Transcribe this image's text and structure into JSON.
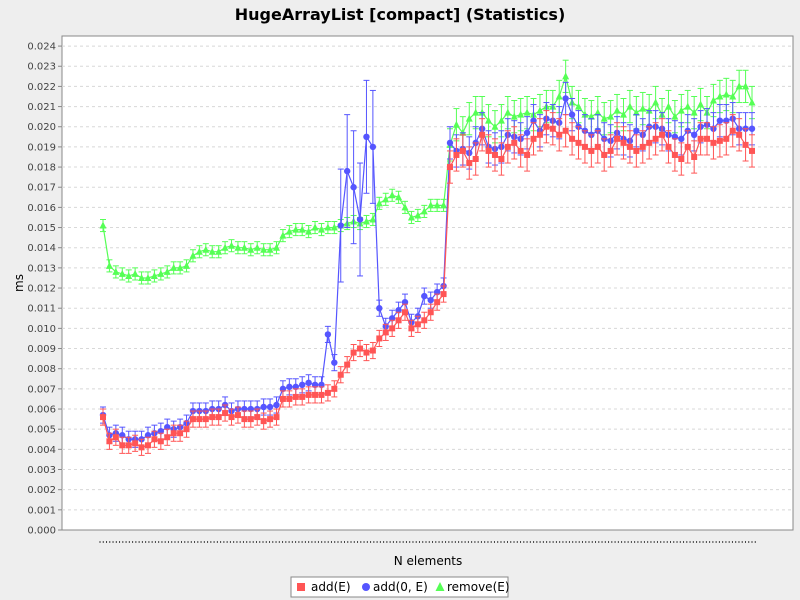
{
  "chart_data": {
    "type": "line",
    "title": "HugeArrayList [compact] (Statistics)",
    "xlabel": "N elements",
    "ylabel": "ms",
    "ylim": [
      0.0,
      0.0245
    ],
    "yticks": [
      "0.000",
      "0.001",
      "0.002",
      "0.003",
      "0.004",
      "0.005",
      "0.006",
      "0.007",
      "0.008",
      "0.009",
      "0.010",
      "0.011",
      "0.012",
      "0.013",
      "0.014",
      "0.015",
      "0.016",
      "0.017",
      "0.018",
      "0.019",
      "0.020",
      "0.021",
      "0.022",
      "0.023",
      "0.024"
    ],
    "grid": true,
    "legend_position": "bottom",
    "series": [
      {
        "name": "add(E)",
        "color": "#ff5555",
        "marker": "square",
        "values": [
          0.0056,
          0.0044,
          0.0046,
          0.0042,
          0.0042,
          0.0043,
          0.0041,
          0.0042,
          0.0045,
          0.0044,
          0.0046,
          0.0048,
          0.0048,
          0.005,
          0.0055,
          0.0055,
          0.0055,
          0.0056,
          0.0056,
          0.0058,
          0.0056,
          0.0057,
          0.0055,
          0.0055,
          0.0056,
          0.0054,
          0.0055,
          0.0056,
          0.0065,
          0.0065,
          0.0066,
          0.0066,
          0.0067,
          0.0067,
          0.0067,
          0.0068,
          0.007,
          0.0077,
          0.0082,
          0.0088,
          0.009,
          0.0088,
          0.0089,
          0.0095,
          0.0098,
          0.01,
          0.0104,
          0.0108,
          0.01,
          0.0102,
          0.0104,
          0.0108,
          0.0113,
          0.0117,
          0.018,
          0.0186,
          0.0188,
          0.0182,
          0.0184,
          0.0196,
          0.0188,
          0.0186,
          0.0184,
          0.019,
          0.0192,
          0.0188,
          0.0186,
          0.0194,
          0.0196,
          0.02,
          0.0199,
          0.0196,
          0.0198,
          0.0194,
          0.0192,
          0.019,
          0.0188,
          0.019,
          0.0186,
          0.0188,
          0.0194,
          0.0192,
          0.019,
          0.0188,
          0.019,
          0.0192,
          0.0194,
          0.0196,
          0.019,
          0.0186,
          0.0184,
          0.019,
          0.0185,
          0.0194,
          0.0194,
          0.0192,
          0.0193,
          0.0194,
          0.0198,
          0.0196,
          0.0191,
          0.0188
        ]
      },
      {
        "name": "add(0, E)",
        "color": "#5555ff",
        "marker": "circle",
        "values": [
          0.0057,
          0.0047,
          0.0048,
          0.0047,
          0.0045,
          0.0045,
          0.0045,
          0.0047,
          0.0048,
          0.0049,
          0.0051,
          0.005,
          0.0051,
          0.0053,
          0.0059,
          0.0059,
          0.0059,
          0.006,
          0.006,
          0.0062,
          0.0059,
          0.006,
          0.006,
          0.006,
          0.006,
          0.0061,
          0.0061,
          0.0062,
          0.007,
          0.0071,
          0.0071,
          0.0072,
          0.0073,
          0.0072,
          0.0072,
          0.0097,
          0.0083,
          0.0151,
          0.0178,
          0.017,
          0.0154,
          0.0195,
          0.019,
          0.011,
          0.0101,
          0.0105,
          0.0109,
          0.0113,
          0.0103,
          0.0106,
          0.0116,
          0.0114,
          0.0118,
          0.0121,
          0.0192,
          0.0188,
          0.0189,
          0.0187,
          0.0192,
          0.0199,
          0.019,
          0.0189,
          0.019,
          0.0196,
          0.0195,
          0.0194,
          0.0197,
          0.0203,
          0.0198,
          0.0204,
          0.0203,
          0.0202,
          0.0214,
          0.0206,
          0.02,
          0.0198,
          0.0196,
          0.0198,
          0.0194,
          0.0193,
          0.0197,
          0.0194,
          0.0193,
          0.0198,
          0.0196,
          0.02,
          0.02,
          0.0199,
          0.0196,
          0.0195,
          0.0194,
          0.0198,
          0.0196,
          0.02,
          0.0201,
          0.0199,
          0.0203,
          0.0203,
          0.0204,
          0.0199,
          0.0199,
          0.0199
        ]
      },
      {
        "name": "remove(E)",
        "color": "#55ff55",
        "marker": "triangle",
        "values": [
          0.0151,
          0.0131,
          0.0128,
          0.0127,
          0.0126,
          0.0127,
          0.0125,
          0.0125,
          0.0126,
          0.0127,
          0.0128,
          0.013,
          0.013,
          0.0131,
          0.0136,
          0.0138,
          0.0139,
          0.0138,
          0.0138,
          0.014,
          0.0141,
          0.014,
          0.014,
          0.0139,
          0.014,
          0.0139,
          0.0139,
          0.014,
          0.0146,
          0.0148,
          0.0149,
          0.0149,
          0.0148,
          0.015,
          0.0149,
          0.015,
          0.015,
          0.0151,
          0.0152,
          0.0153,
          0.0152,
          0.0153,
          0.0154,
          0.0162,
          0.0164,
          0.0166,
          0.0165,
          0.016,
          0.0155,
          0.0156,
          0.0158,
          0.0161,
          0.0161,
          0.0161,
          0.0191,
          0.0201,
          0.0197,
          0.0204,
          0.0207,
          0.0207,
          0.0203,
          0.02,
          0.0203,
          0.0207,
          0.0205,
          0.0206,
          0.0207,
          0.0206,
          0.0208,
          0.021,
          0.021,
          0.0215,
          0.0225,
          0.0212,
          0.021,
          0.0206,
          0.0205,
          0.0207,
          0.0204,
          0.0205,
          0.0208,
          0.0206,
          0.021,
          0.0207,
          0.0209,
          0.0208,
          0.0212,
          0.0206,
          0.021,
          0.0205,
          0.0208,
          0.021,
          0.0207,
          0.0211,
          0.0207,
          0.0213,
          0.0215,
          0.0216,
          0.0215,
          0.022,
          0.022,
          0.0212
        ]
      }
    ]
  }
}
